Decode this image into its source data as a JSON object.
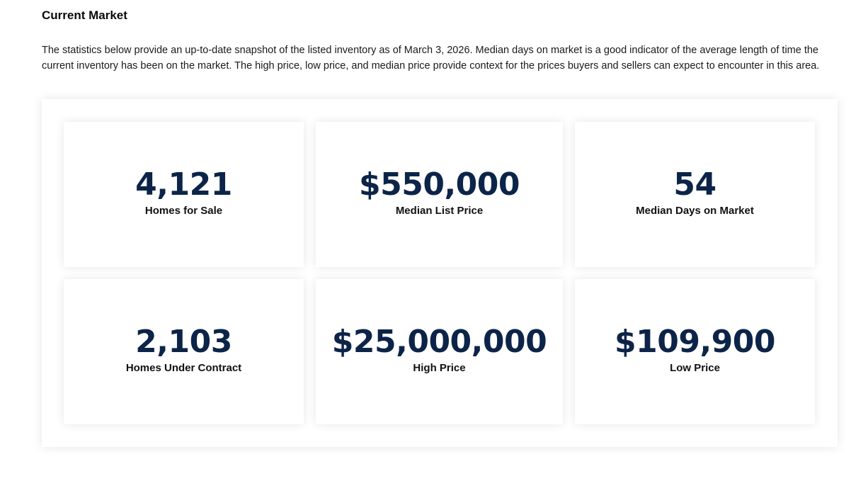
{
  "section": {
    "title": "Current Market",
    "intro": "The statistics below provide an up-to-date snapshot of the listed inventory as of March 3, 2026. Median days on market is a good indicator of the average length of time the current inventory has been on the market. The high price, low price, and median price provide context for the prices buyers and sellers can expect to encounter in this area."
  },
  "stats": [
    {
      "value": "4,121",
      "label": "Homes for Sale"
    },
    {
      "value": "$550,000",
      "label": "Median List Price"
    },
    {
      "value": "54",
      "label": "Median Days on Market"
    },
    {
      "value": "2,103",
      "label": "Homes Under Contract"
    },
    {
      "value": "$25,000,000",
      "label": "High Price"
    },
    {
      "value": "$109,900",
      "label": "Low Price"
    }
  ],
  "colors": {
    "stat_value": "#0c2448",
    "label": "#111111",
    "background": "#ffffff"
  }
}
